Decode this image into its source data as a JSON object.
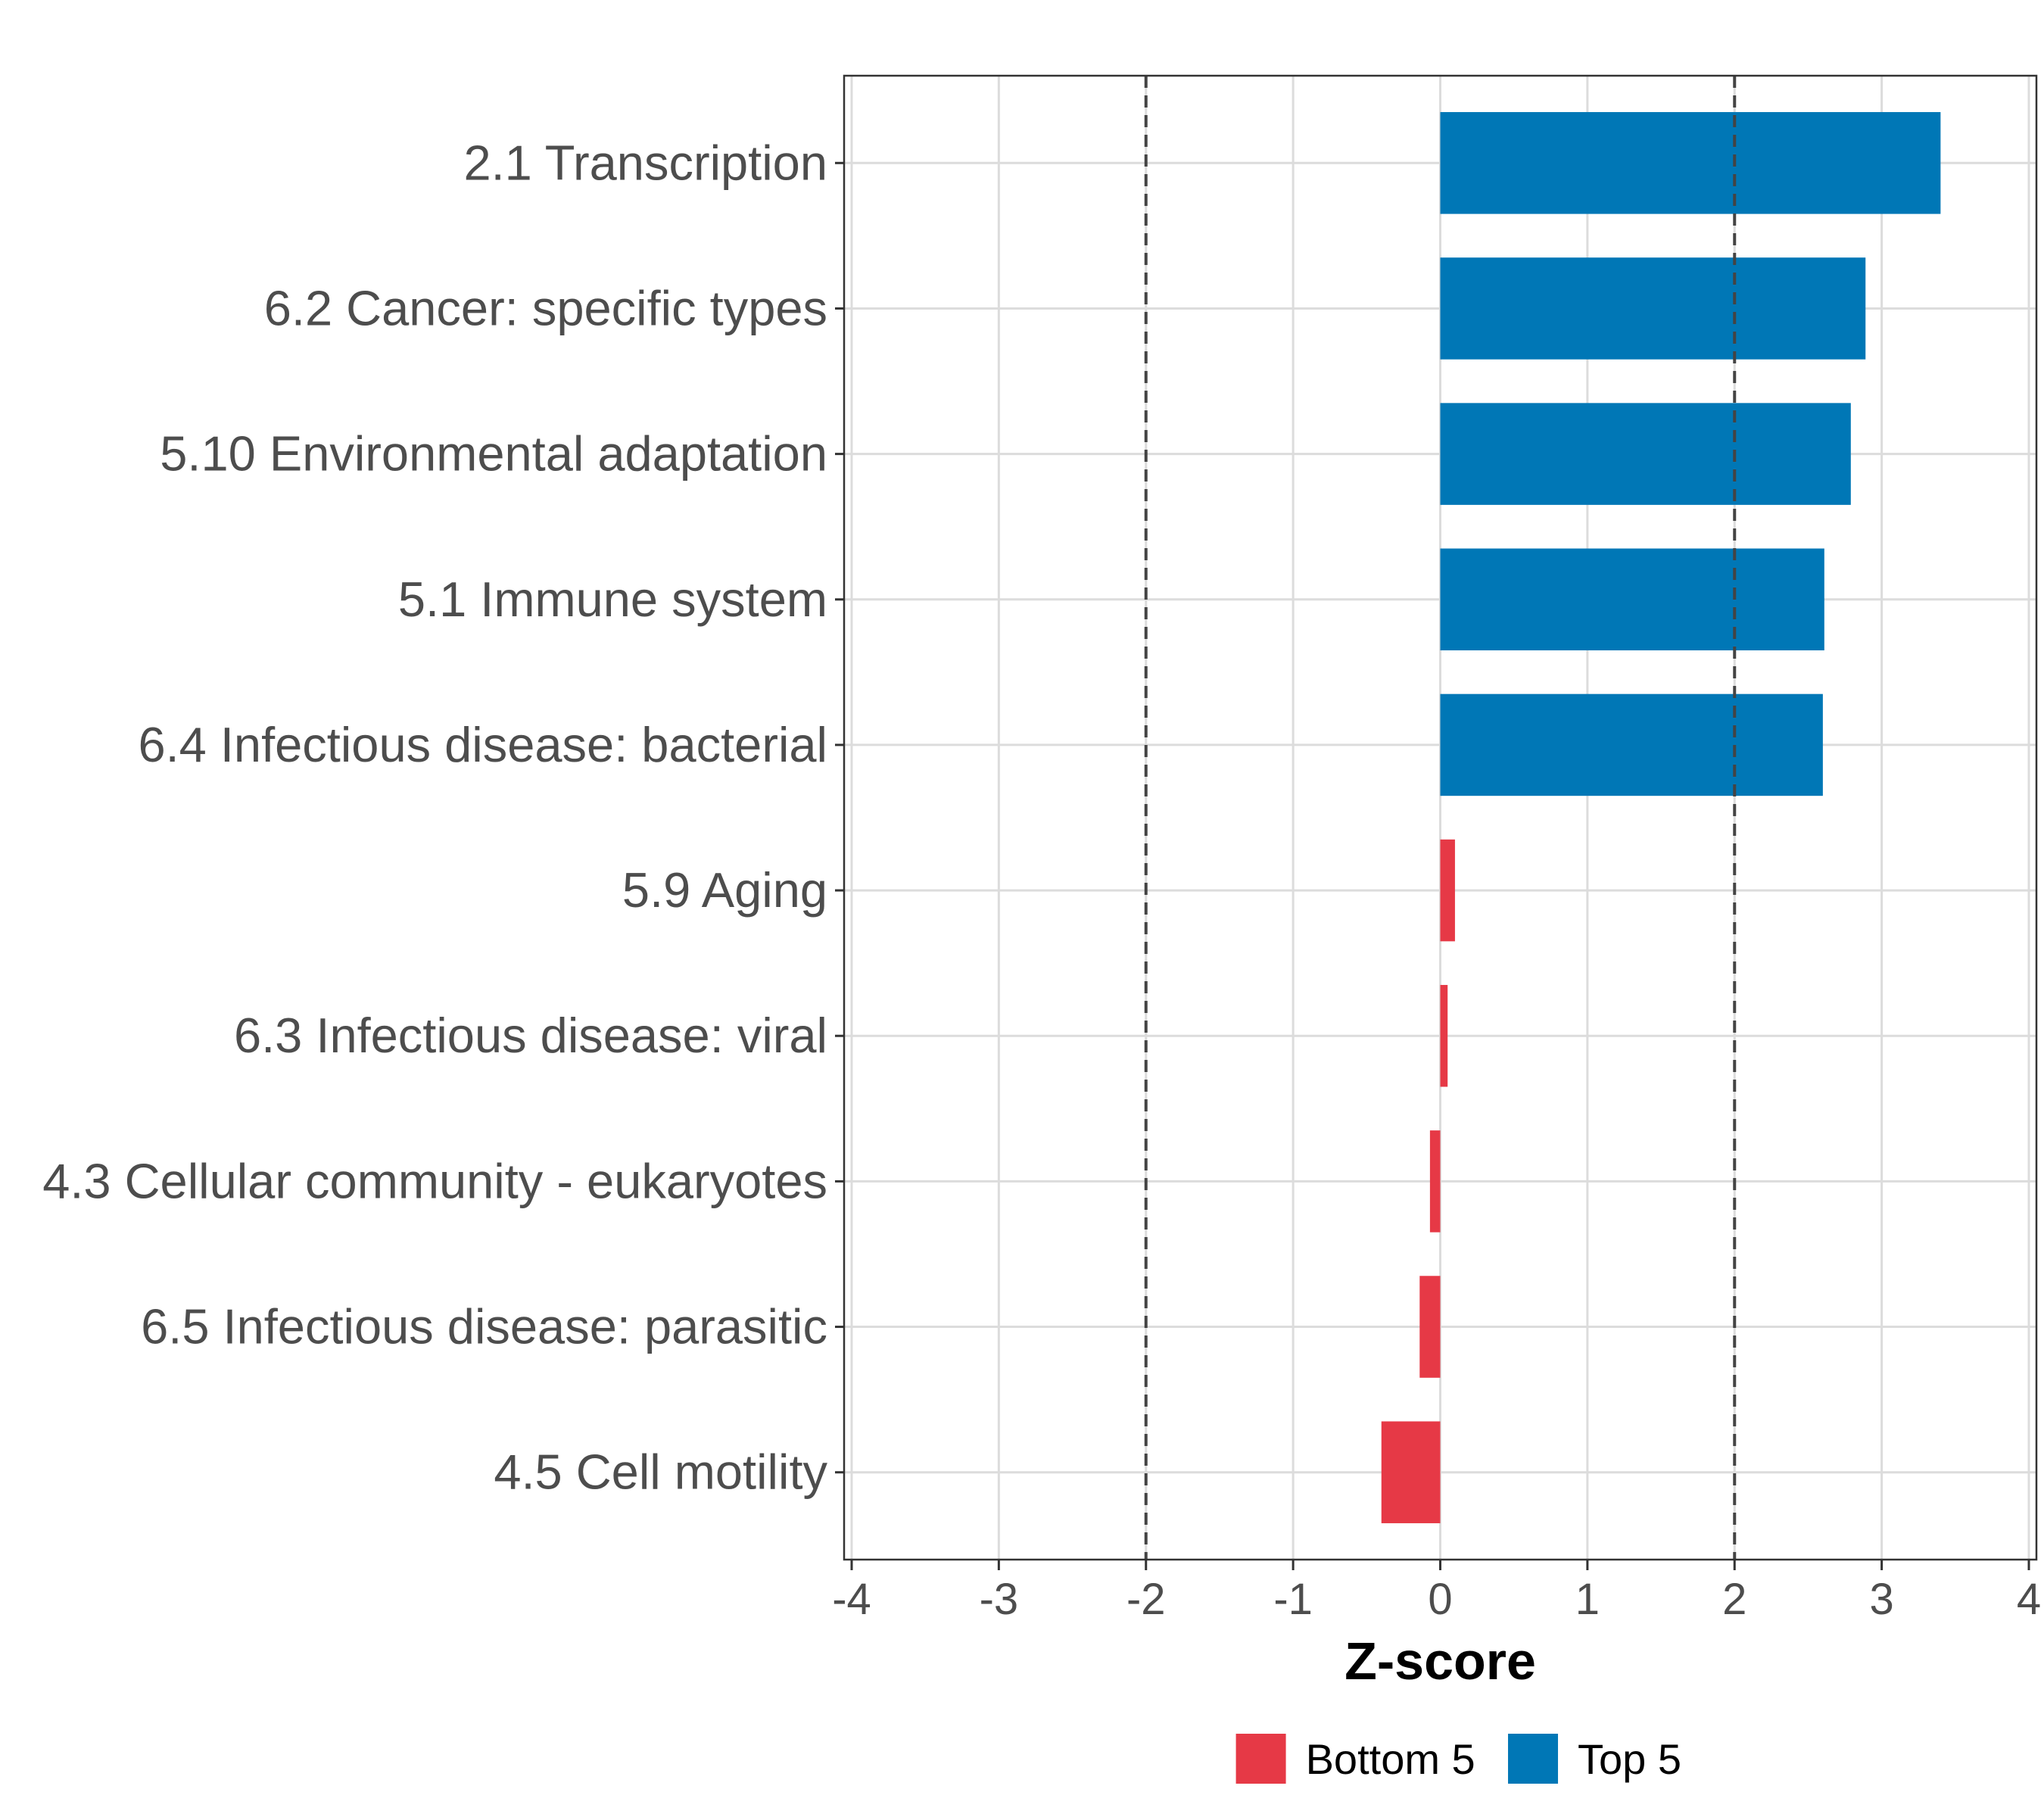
{
  "chart_data": {
    "type": "bar",
    "orientation": "horizontal",
    "categories": [
      "2.1 Transcription",
      "6.2 Cancer: specific types",
      "5.10 Environmental adaptation",
      "5.1 Immune system",
      "6.4 Infectious disease: bacterial",
      "5.9 Aging",
      "6.3 Infectious disease: viral",
      "4.3 Cellular community - eukaryotes",
      "6.5 Infectious disease: parasitic",
      "4.5 Cell motility"
    ],
    "values": [
      3.4,
      2.89,
      2.79,
      2.61,
      2.6,
      0.1,
      0.05,
      -0.07,
      -0.14,
      -0.4
    ],
    "groups": [
      "Top 5",
      "Top 5",
      "Top 5",
      "Top 5",
      "Top 5",
      "Bottom 5",
      "Bottom 5",
      "Bottom 5",
      "Bottom 5",
      "Bottom 5"
    ],
    "xlabel": "Z-score",
    "ylabel": "",
    "xlim": [
      -4,
      4
    ],
    "xticks": [
      "-4",
      "-3",
      "-2",
      "-1",
      "0",
      "1",
      "2",
      "3",
      "4"
    ],
    "reference_lines": [
      -2,
      2
    ],
    "grid": true,
    "legend": {
      "position": "bottom",
      "entries": [
        {
          "label": "Bottom 5",
          "color": "#E63946"
        },
        {
          "label": "Top 5",
          "color": "#0077B6"
        }
      ]
    },
    "colors": {
      "Top 5": "#0077B6",
      "Bottom 5": "#E63946"
    }
  }
}
